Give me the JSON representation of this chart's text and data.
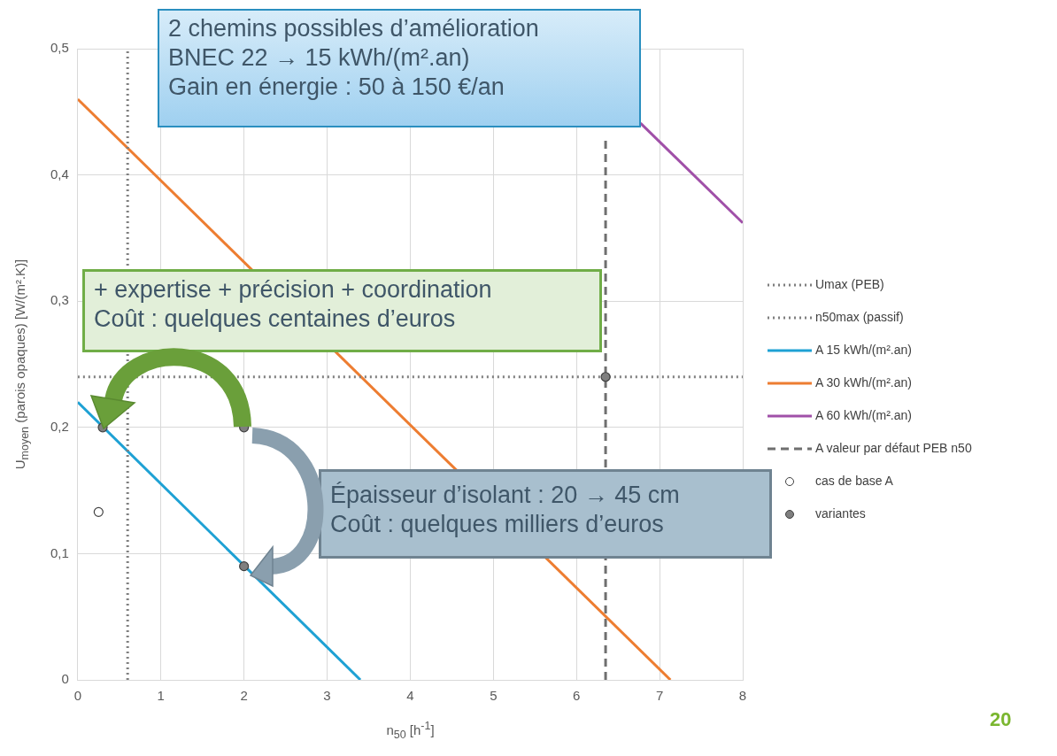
{
  "chart_data": {
    "type": "line",
    "xlabel": "n$_{50}$ [h$^{-1}$]",
    "ylabel": "U$_{moyen}$ (parois opaques) [W/(m².K)]",
    "xlim": [
      0,
      8
    ],
    "xticks": [
      0,
      1,
      2,
      3,
      4,
      5,
      6,
      7,
      8
    ],
    "ylim": [
      0,
      0.5
    ],
    "yticks": [
      {
        "value": 0,
        "label": "0"
      },
      {
        "value": 0.1,
        "label": "0,1"
      },
      {
        "value": 0.2,
        "label": "0,2"
      },
      {
        "value": 0.3,
        "label": "0,3"
      },
      {
        "value": 0.4,
        "label": "0,4"
      },
      {
        "value": 0.5,
        "label": "0,5"
      }
    ],
    "grid": true,
    "legend": "right",
    "series": [
      {
        "name": "Umax (PEB)",
        "type": "line",
        "line_style": "dotted",
        "color": "#7f7f7f",
        "x": [
          0,
          8
        ],
        "values": [
          0.24,
          0.24
        ]
      },
      {
        "name": "n50max (passif)",
        "type": "line",
        "line_style": "dotted",
        "color": "#7f7f7f",
        "x": [
          0.6,
          0.6
        ],
        "values": [
          0,
          0.5
        ]
      },
      {
        "name": "A 15 kWh/(m².an)",
        "type": "line",
        "line_style": "solid",
        "color": "#1ea1d4",
        "x": [
          0,
          3.4
        ],
        "values": [
          0.22,
          0
        ]
      },
      {
        "name": "A 30 kWh/(m².an)",
        "type": "line",
        "line_style": "solid",
        "color": "#ed7d31",
        "x": [
          0,
          7.13
        ],
        "values": [
          0.46,
          0
        ]
      },
      {
        "name": "A 60 kWh/(m².an)",
        "type": "line",
        "line_style": "solid",
        "color": "#a050a8",
        "x": [
          6.77,
          8
        ],
        "values": [
          0.441,
          0.362
        ]
      },
      {
        "name": "A valeur par défaut PEB n50",
        "type": "line",
        "line_style": "dashed",
        "color": "#6f6f6f",
        "x": [
          6.35,
          6.35
        ],
        "values": [
          0,
          0.43
        ]
      },
      {
        "name": "cas de base A",
        "type": "scatter",
        "marker": "circle",
        "color": "#ffffff",
        "x": [
          0.25
        ],
        "values": [
          0.133
        ]
      },
      {
        "name": "variantes",
        "type": "scatter",
        "marker": "circle",
        "color": "#7f7f7f",
        "x": [
          0.3,
          2,
          2,
          6.35
        ],
        "values": [
          0.2,
          0.2,
          0.09,
          0.24
        ]
      }
    ],
    "annotations": [
      "2 chemins possibles d’amélioration\nBNEC 22 → 15 kWh/(m².an)\nGain en énergie : 50 à 150 €/an",
      "+ expertise + précision + coordination\nCoût : quelques centaines d’euros",
      "Épaisseur d’isolant : 20 → 45 cm\nCoût : quelques milliers d’euros",
      "20"
    ]
  }
}
